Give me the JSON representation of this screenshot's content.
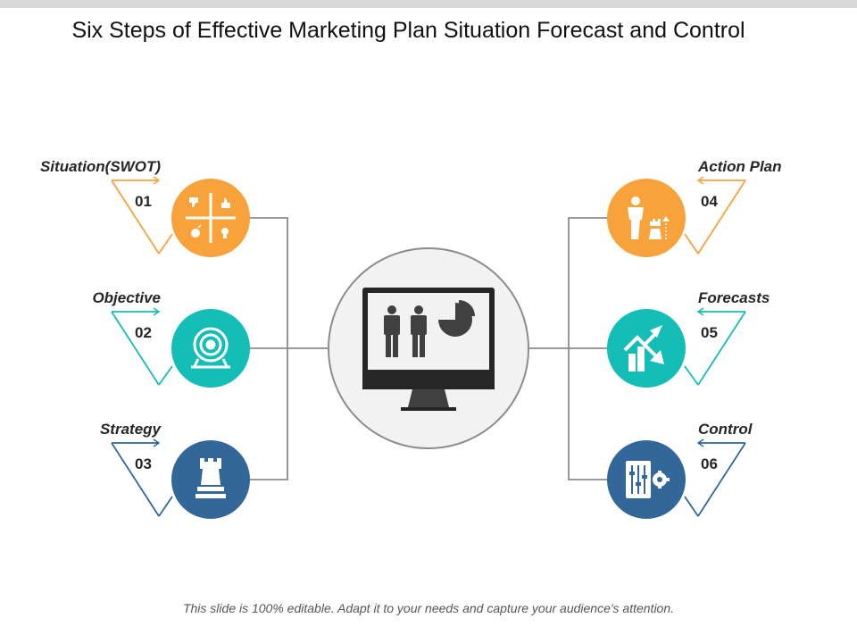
{
  "title": "Six Steps of Effective Marketing Plan Situation Forecast and Control",
  "footer": "This slide is 100% editable.  Adapt it to your needs and capture your audience's attention.",
  "colors": {
    "orange": "#F7A23B",
    "teal": "#14BDB5",
    "blue": "#336699",
    "connector": "#8c8c8c",
    "hub": "#f2f2f2"
  },
  "steps": [
    {
      "number": "01",
      "label": "Situation(SWOT)",
      "icon": "swot-grid-icon",
      "color": "orange"
    },
    {
      "number": "02",
      "label": "Objective",
      "icon": "target-icon",
      "color": "teal"
    },
    {
      "number": "03",
      "label": "Strategy",
      "icon": "chess-rook-icon",
      "color": "blue"
    },
    {
      "number": "04",
      "label": "Action Plan",
      "icon": "presenter-chess-icon",
      "color": "orange"
    },
    {
      "number": "05",
      "label": "Forecasts",
      "icon": "growth-chart-icon",
      "color": "teal"
    },
    {
      "number": "06",
      "label": "Control",
      "icon": "sliders-gear-icon",
      "color": "blue"
    }
  ],
  "hub": {
    "icon": "monitor-presentation-icon"
  }
}
